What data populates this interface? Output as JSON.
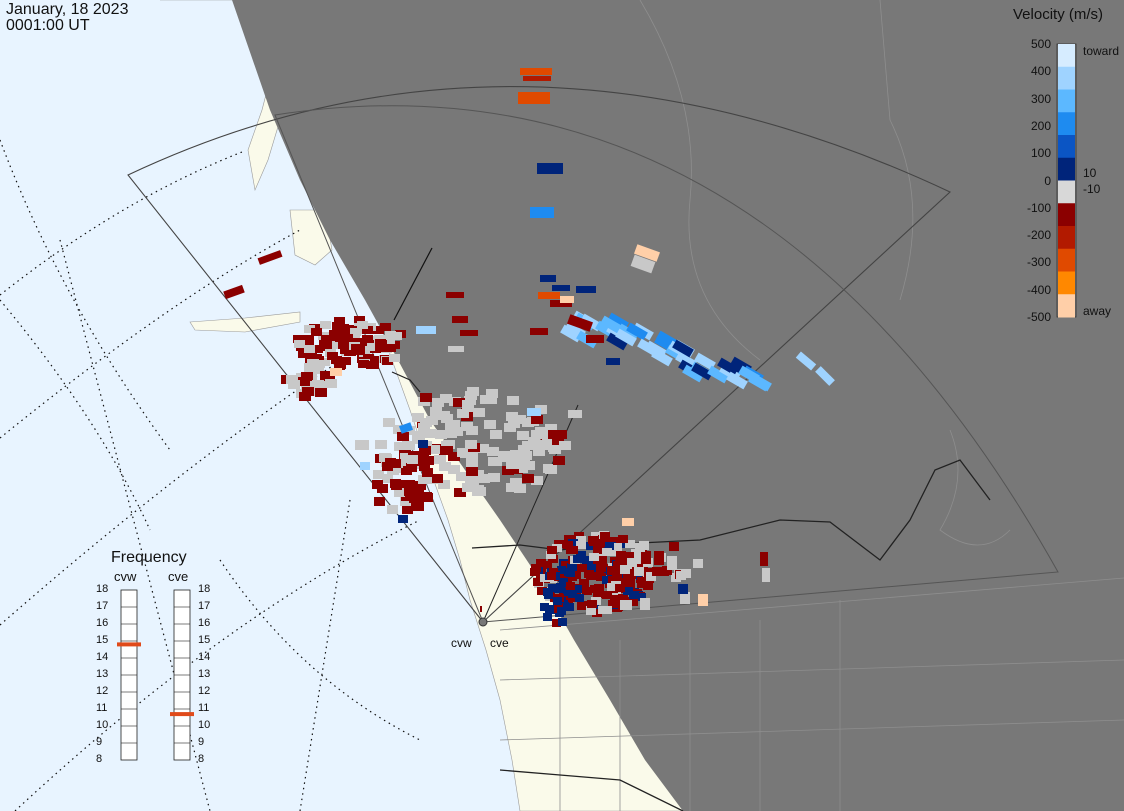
{
  "header": {
    "date": "January, 18 2023",
    "time": "0001:00 UT"
  },
  "colorbar": {
    "title": "Velocity (m/s)",
    "ticks": [
      "500",
      "400",
      "300",
      "200",
      "100",
      "0",
      "-100",
      "-200",
      "-300",
      "-400",
      "-500"
    ],
    "threshold_pos": "10",
    "threshold_neg": "-10",
    "end_toward": "toward",
    "end_away": "away",
    "colors": [
      "#d6ecff",
      "#9fd3ff",
      "#5cb8ff",
      "#1e8bf0",
      "#0b55c4",
      "#00247a",
      "#d8d8d8",
      "#8b0000",
      "#b21a00",
      "#e04a00",
      "#ff8800",
      "#ffcfa8"
    ]
  },
  "frequency": {
    "title": "Frequency",
    "radars": [
      {
        "name": "cvw",
        "selected_mhz": 14.8
      },
      {
        "name": "cve",
        "selected_mhz": 10.7
      }
    ],
    "scale": [
      "18",
      "17",
      "16",
      "15",
      "14",
      "13",
      "12",
      "11",
      "10",
      "9",
      "8"
    ]
  },
  "radar_sites": [
    {
      "name": "cvw"
    },
    {
      "name": "cve"
    }
  ],
  "map_colors": {
    "ocean": "#e8f4ff",
    "land": "#fafaea",
    "night": "#787878",
    "groundscatter": "#c8c8c8"
  }
}
